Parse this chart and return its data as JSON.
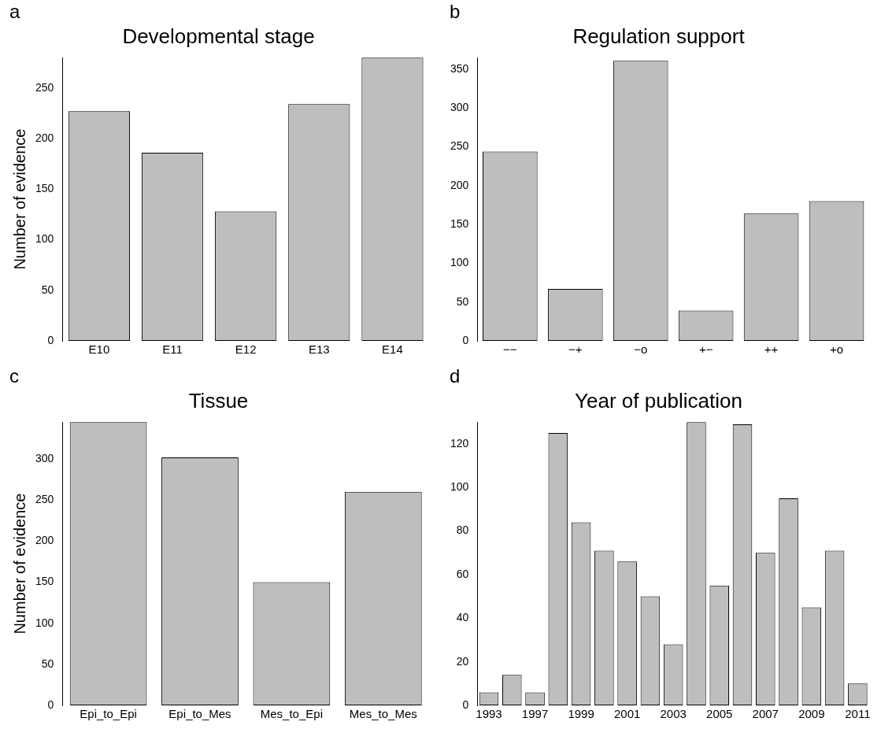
{
  "chart_data": [
    {
      "type": "bar",
      "title": "Developmental stage",
      "ylabel": "Number of evidence",
      "annotations": [
        "a"
      ],
      "categories": [
        "E10",
        "E11",
        "E12",
        "E13",
        "E14"
      ],
      "values": [
        227,
        186,
        128,
        234,
        280
      ],
      "color": "#bebebe",
      "ylim": [
        0,
        280
      ],
      "yticks": [
        0,
        50,
        100,
        150,
        200,
        250
      ],
      "grid": false,
      "legend": false
    },
    {
      "type": "bar",
      "title": "Regulation support",
      "annotations": [
        "b"
      ],
      "categories": [
        "−−",
        "−+",
        "−o",
        "+−",
        "++",
        "+o"
      ],
      "values": [
        244,
        67,
        361,
        39,
        164,
        180
      ],
      "color": "#bebebe",
      "ylim": [
        0,
        365
      ],
      "yticks": [
        0,
        50,
        100,
        150,
        200,
        250,
        300,
        350
      ],
      "grid": false,
      "legend": false
    },
    {
      "type": "bar",
      "title": "Tissue",
      "ylabel": "Number of evidence",
      "annotations": [
        "c"
      ],
      "categories": [
        "Epi_to_Epi",
        "Epi_to_Mes",
        "Mes_to_Epi",
        "Mes_to_Mes"
      ],
      "values": [
        345,
        302,
        150,
        260
      ],
      "color": "#bebebe",
      "ylim": [
        0,
        345
      ],
      "yticks": [
        0,
        50,
        100,
        150,
        200,
        250,
        300
      ],
      "grid": false,
      "legend": false
    },
    {
      "type": "bar",
      "title": "Year of publication",
      "annotations": [
        "d"
      ],
      "categories": [
        "1993",
        null,
        "1997",
        null,
        "1999",
        null,
        "2001",
        null,
        "2003",
        null,
        "2005",
        null,
        "2007",
        null,
        "2009",
        null,
        "2011"
      ],
      "values": [
        6,
        14,
        6,
        125,
        84,
        71,
        66,
        50,
        28,
        130,
        55,
        129,
        70,
        95,
        45,
        71,
        10
      ],
      "color": "#bebebe",
      "ylim": [
        0,
        130
      ],
      "yticks": [
        0,
        20,
        40,
        60,
        80,
        100,
        120
      ],
      "grid": false,
      "legend": false
    }
  ]
}
